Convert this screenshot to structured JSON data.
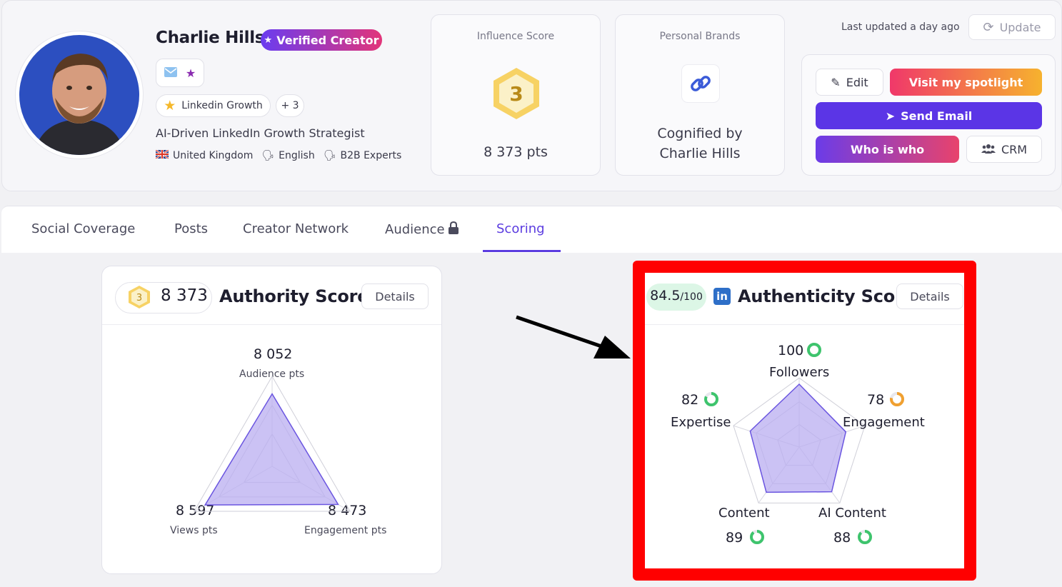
{
  "profile": {
    "name": "Charlie Hills",
    "verified_label": "Verified Creator",
    "tags": [
      "Linkedin Growth",
      "+ 3"
    ],
    "headline": "AI-Driven LinkedIn Growth Strategist",
    "country": "United Kingdom",
    "language": "English",
    "audience": "B2B Experts"
  },
  "influence": {
    "label": "Influence Score",
    "rank": "3",
    "points": "8 373 pts"
  },
  "brands": {
    "label": "Personal Brands",
    "line1": "Cognified by",
    "line2": "Charlie Hills"
  },
  "top_right": {
    "last_updated": "Last updated a day ago",
    "update_label": "Update"
  },
  "actions": {
    "edit": "Edit",
    "spotlight": "Visit my spotlight",
    "send_email": "Send Email",
    "who_is_who": "Who is who",
    "crm": "CRM"
  },
  "tabs": [
    "Social Coverage",
    "Posts",
    "Creator Network",
    "Audience",
    "Scoring"
  ],
  "active_tab": "Scoring",
  "authority": {
    "rank": "3",
    "value": "8 373",
    "title": "Authority Score",
    "details": "Details",
    "chart_data": {
      "type": "radar",
      "axes": [
        "Audience pts",
        "Engagement pts",
        "Views pts"
      ],
      "values": [
        8052,
        8473,
        8597
      ],
      "labels": [
        "8 052",
        "8 473",
        "8 597"
      ]
    }
  },
  "authenticity": {
    "score": "84.5",
    "score_suffix": "/100",
    "title": "Authenticity Score",
    "details": "Details",
    "chart_data": {
      "type": "radar",
      "axes": [
        "Followers",
        "Engagement",
        "AI Content",
        "Content",
        "Expertise"
      ],
      "values": [
        100,
        78,
        88,
        89,
        82
      ],
      "ylim": [
        0,
        100
      ]
    }
  },
  "colors": {
    "accent": "#5b3ce0",
    "radar_fill": "#b9aef0",
    "radar_stroke": "#6a55e0",
    "ring_green": "#3ec46d",
    "ring_orange": "#f0a030",
    "highlight": "#ff0000"
  }
}
